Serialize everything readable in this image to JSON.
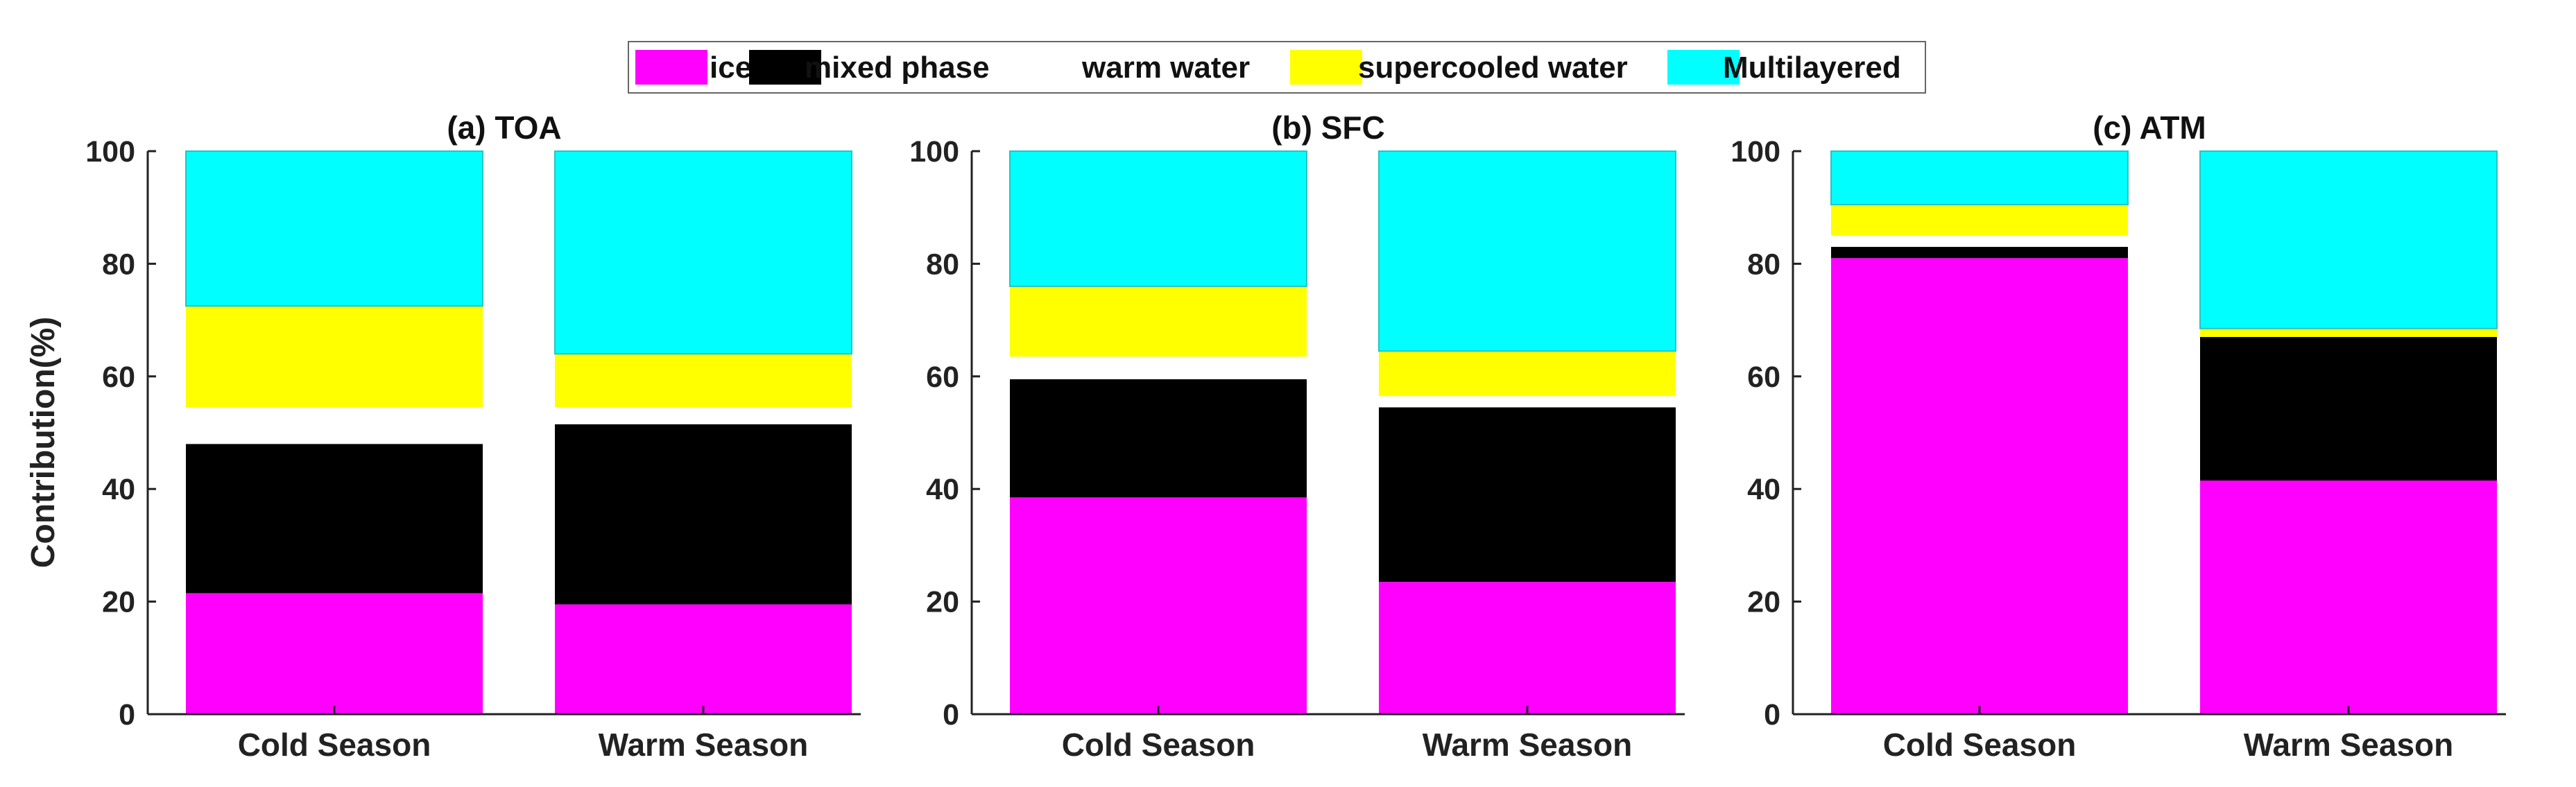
{
  "chart_data": {
    "type": "bar",
    "stacked": true,
    "ylabel": "Contribution(%)",
    "ylim": [
      0,
      100
    ],
    "yticks": [
      0,
      20,
      40,
      60,
      80,
      100
    ],
    "categories": [
      "Cold Season",
      "Warm Season"
    ],
    "legend": [
      {
        "name": "ice",
        "color": "#ff00ff"
      },
      {
        "name": "mixed phase",
        "color": "#000000"
      },
      {
        "name": "warm water",
        "color": "#ffffff"
      },
      {
        "name": "supercooled water",
        "color": "#ffff00"
      },
      {
        "name": "Multilayered",
        "color": "#00ffff"
      }
    ],
    "panels": [
      {
        "title": "(a) TOA",
        "series": [
          {
            "name": "ice",
            "values": [
              21.5,
              19.5
            ]
          },
          {
            "name": "mixed phase",
            "values": [
              26.5,
              32.0
            ]
          },
          {
            "name": "warm water",
            "values": [
              6.5,
              3.0
            ]
          },
          {
            "name": "supercooled water",
            "values": [
              18.0,
              9.5
            ]
          },
          {
            "name": "Multilayered",
            "values": [
              27.5,
              36.0
            ]
          }
        ]
      },
      {
        "title": "(b) SFC",
        "series": [
          {
            "name": "ice",
            "values": [
              38.5,
              23.5
            ]
          },
          {
            "name": "mixed phase",
            "values": [
              21.0,
              31.0
            ]
          },
          {
            "name": "warm water",
            "values": [
              4.0,
              2.0
            ]
          },
          {
            "name": "supercooled water",
            "values": [
              12.5,
              8.0
            ]
          },
          {
            "name": "Multilayered",
            "values": [
              24.0,
              35.5
            ]
          }
        ]
      },
      {
        "title": "(c) ATM",
        "series": [
          {
            "name": "ice",
            "values": [
              81.0,
              41.5
            ]
          },
          {
            "name": "mixed phase",
            "values": [
              2.0,
              25.5
            ]
          },
          {
            "name": "warm water",
            "values": [
              2.0,
              0.0
            ]
          },
          {
            "name": "supercooled water",
            "values": [
              5.5,
              1.5
            ]
          },
          {
            "name": "Multilayered",
            "values": [
              9.5,
              31.5
            ]
          }
        ]
      }
    ]
  }
}
